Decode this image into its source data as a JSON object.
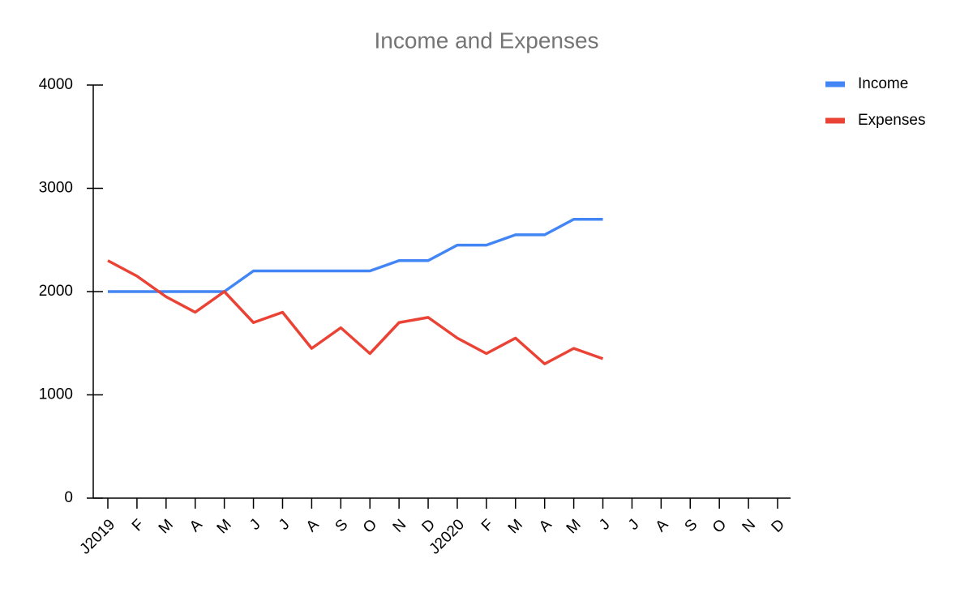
{
  "chart_data": {
    "type": "line",
    "title": "Income and Expenses",
    "categories": [
      "J2019",
      "F",
      "M",
      "A",
      "M",
      "J",
      "J",
      "A",
      "S",
      "O",
      "N",
      "D",
      "J2020",
      "F",
      "M",
      "A",
      "M",
      "J",
      "J",
      "A",
      "S",
      "O",
      "N",
      "D"
    ],
    "series": [
      {
        "name": "Income",
        "color": "#4285f4",
        "values": [
          2000,
          2000,
          2000,
          2000,
          2000,
          2200,
          2200,
          2200,
          2200,
          2200,
          2300,
          2300,
          2450,
          2450,
          2550,
          2550,
          2700,
          2700,
          null,
          null,
          null,
          null,
          null,
          null
        ]
      },
      {
        "name": "Expenses",
        "color": "#ea4335",
        "values": [
          2300,
          2150,
          1950,
          1800,
          2000,
          1700,
          1800,
          1450,
          1650,
          1400,
          1700,
          1750,
          1550,
          1400,
          1550,
          1300,
          1450,
          1350,
          null,
          null,
          null,
          null,
          null,
          null
        ]
      }
    ],
    "ylim": [
      0,
      4000
    ],
    "yticks": [
      0,
      1000,
      2000,
      3000,
      4000
    ],
    "legend": "right"
  }
}
